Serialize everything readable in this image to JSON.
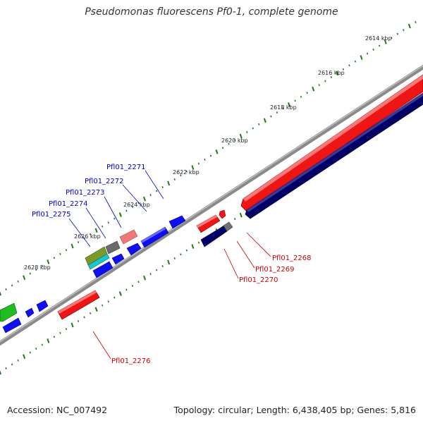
{
  "title": "Pseudomonas fluorescens Pf0-1, complete genome",
  "footer": {
    "accession": "Accession: NC_007492",
    "summary": "Topology: circular; Length: 6,438,405 bp; Genes: 5,816"
  },
  "colors": {
    "forward_gene": "#1010ee",
    "forward_rna": "#ee1111",
    "reverse_gene": "#000066",
    "pseudo": "#707070",
    "backbone": "#7a7a7a",
    "ticks": "#1a7a1a",
    "label_forward": "#0000cc",
    "label_reverse": "#cc0000"
  },
  "kbp_labels": [
    "2614 kbp",
    "2616 kbp",
    "2618 kbp",
    "2620 kbp",
    "2622 kbp",
    "2624 kbp",
    "2626 kbp",
    "2628 kbp"
  ],
  "gene_labels": {
    "forward": [
      "Pfl01_2271",
      "Pfl01_2272",
      "Pfl01_2273",
      "Pfl01_2274",
      "Pfl01_2275"
    ],
    "reverse": [
      "Pfl01_2268",
      "Pfl01_2269",
      "Pfl01_2270",
      "Pfl01_2276"
    ]
  }
}
